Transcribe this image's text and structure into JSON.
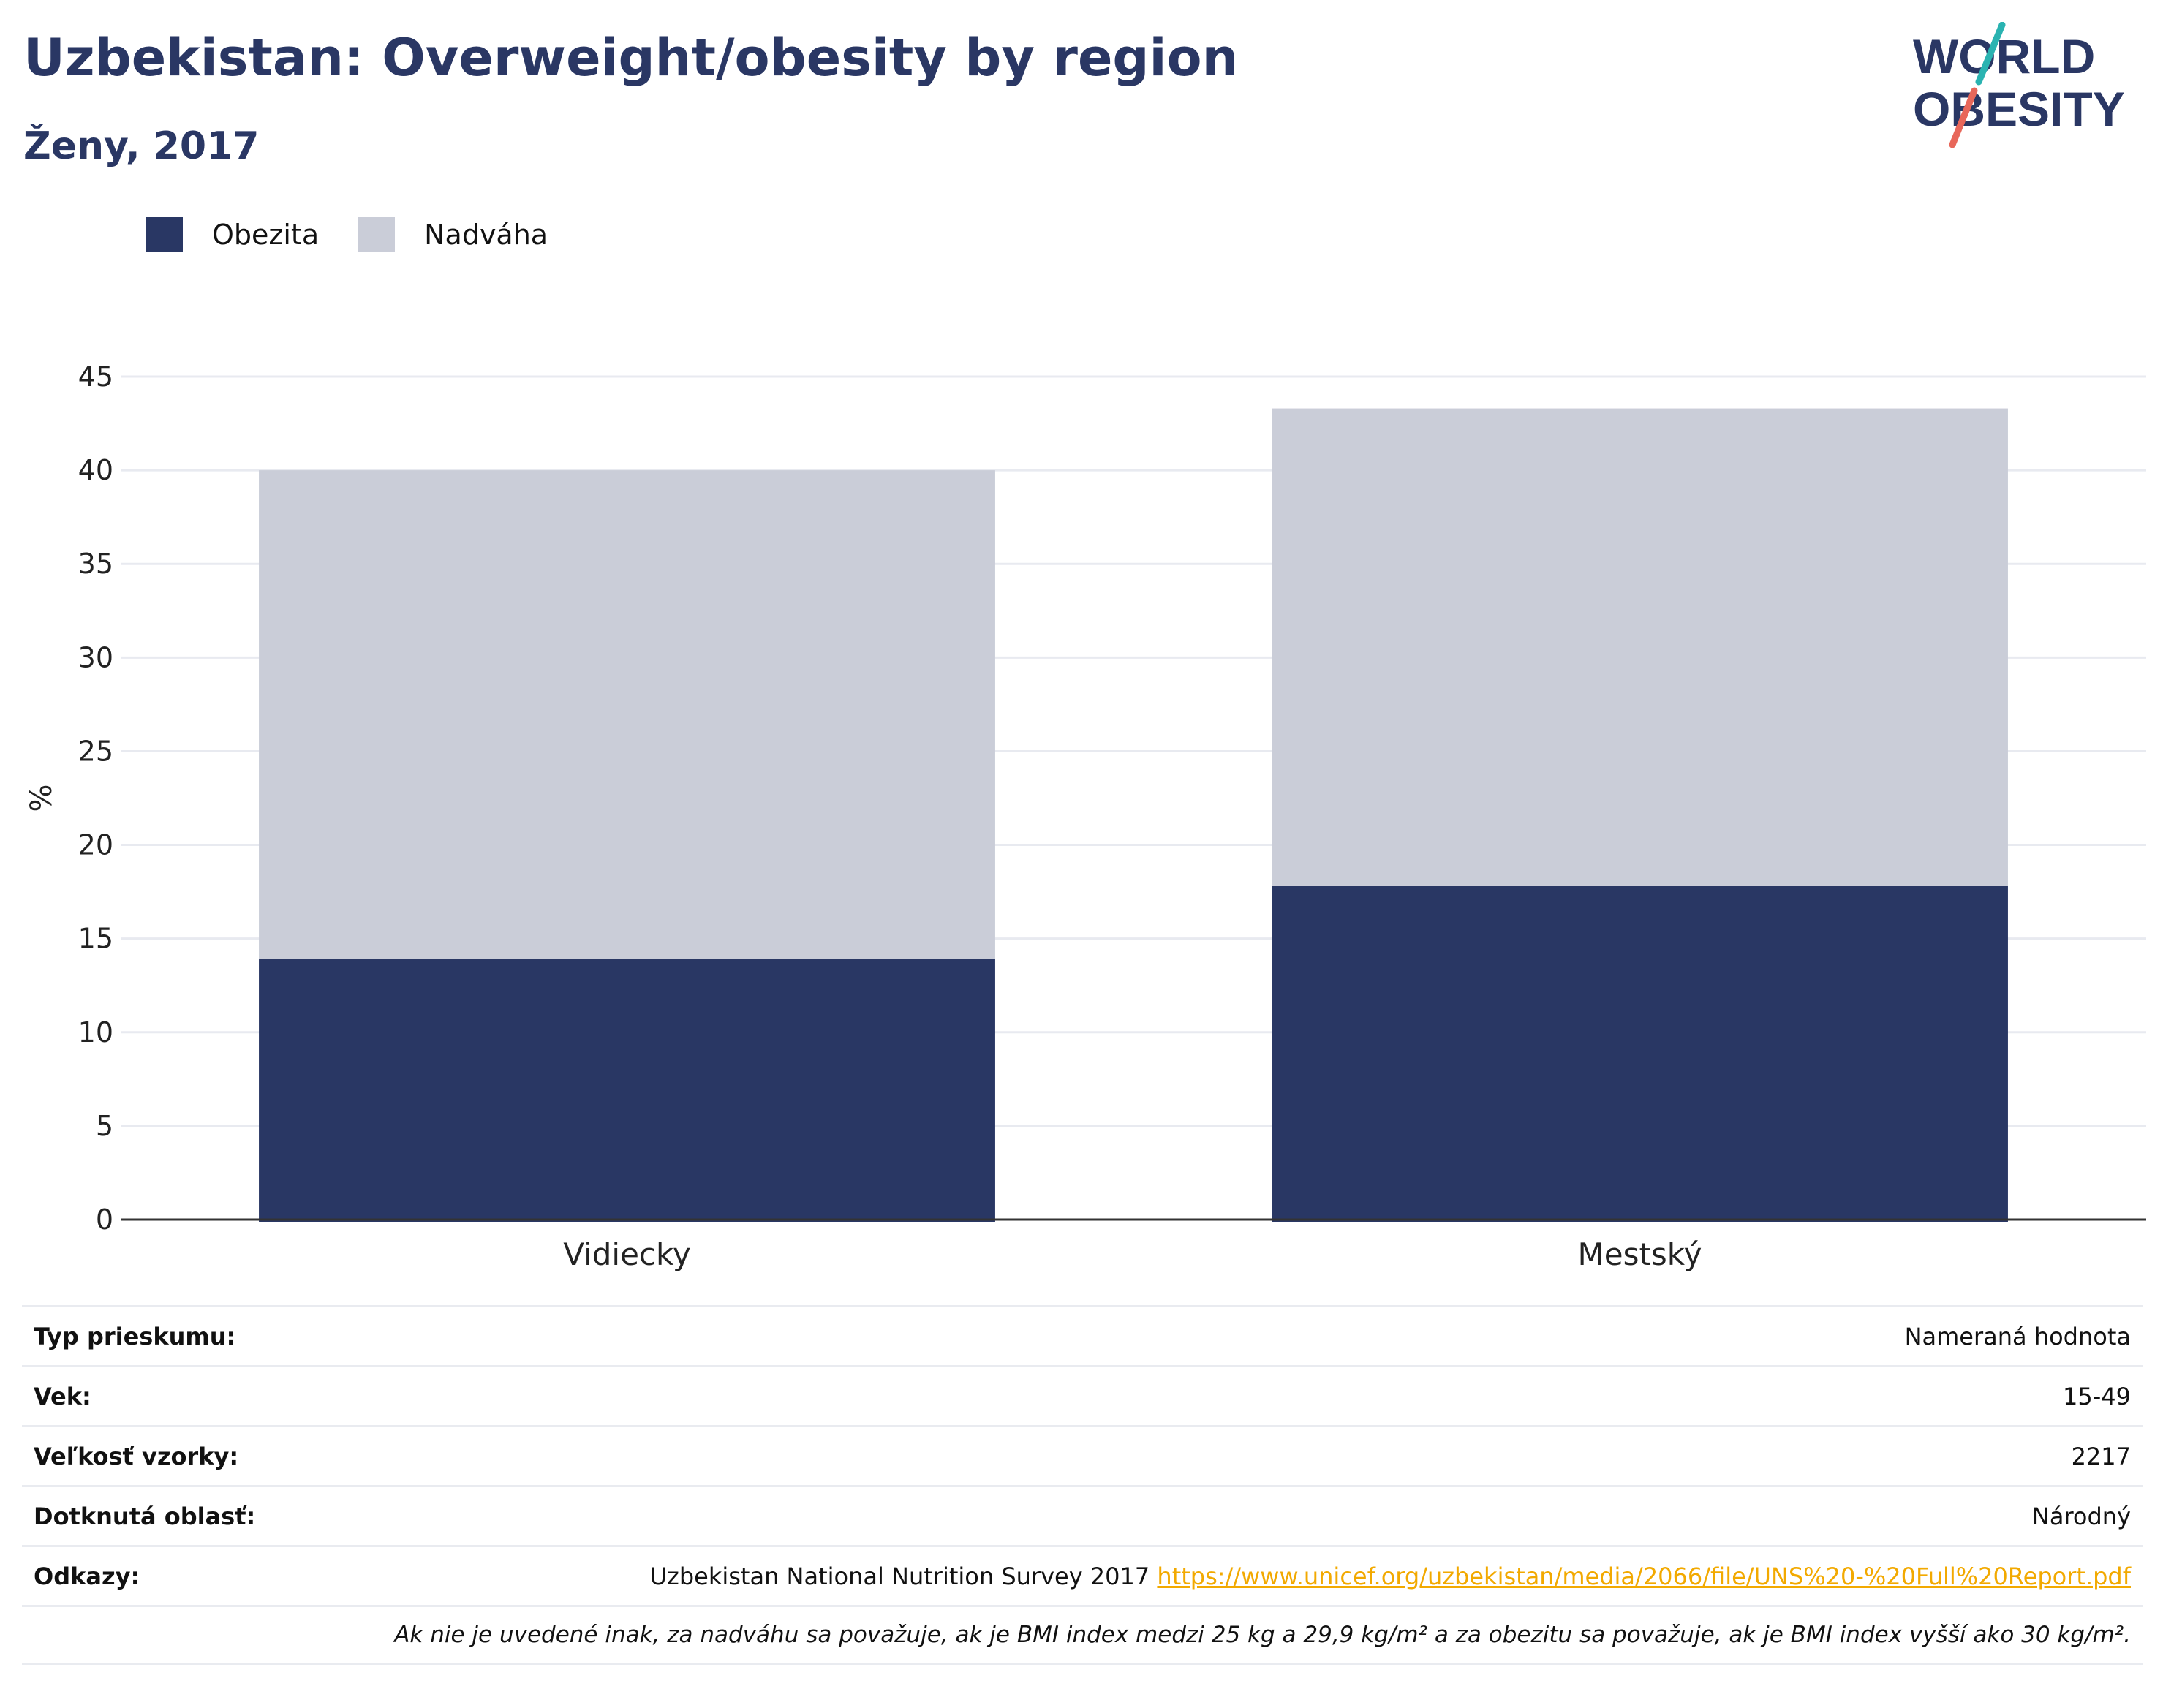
{
  "header": {
    "title": "Uzbekistan: Overweight/obesity by region",
    "subtitle": "Ženy, 2017"
  },
  "logo": {
    "line1": "WORLD",
    "line2": "OBESITY",
    "colors": {
      "text": "#2a3764",
      "slash_top": "#2ab3b1",
      "slash_bottom": "#e8675a"
    }
  },
  "colors": {
    "obesity": "#293764",
    "overweight": "#cacdd8",
    "grid": "#e8eaf0",
    "axis": "#333333",
    "link": "#f2a900"
  },
  "legend": [
    {
      "label": "Obezita",
      "color": "#293764"
    },
    {
      "label": "Nadváha",
      "color": "#cacdd8"
    }
  ],
  "chart_data": {
    "type": "bar",
    "stacked": true,
    "categories": [
      "Vidiecky",
      "Mestský"
    ],
    "series": [
      {
        "name": "Obezita",
        "values": [
          13.9,
          17.8
        ]
      },
      {
        "name": "Nadváha",
        "values": [
          26.1,
          25.5
        ]
      }
    ],
    "ylabel": "%",
    "ylim": [
      0,
      45
    ],
    "yticks": [
      0,
      5,
      10,
      15,
      20,
      25,
      30,
      35,
      40,
      45
    ],
    "grid": true,
    "legend_position": "top-left"
  },
  "info_table": [
    {
      "label": "Typ prieskumu:",
      "value": "Nameraná hodnota"
    },
    {
      "label": "Vek:",
      "value": "15-49"
    },
    {
      "label": "Veľkosť vzorky:",
      "value": "2217"
    },
    {
      "label": "Dotknutá oblasť:",
      "value": "Národný"
    }
  ],
  "references": {
    "label": "Odkazy:",
    "text": "Uzbekistan National Nutrition Survey 2017",
    "link": "https://www.unicef.org/uzbekistan/media/2066/file/UNS%20-%20Full%20Report.pdf"
  },
  "note": "Ak nie je uvedené inak, za nadváhu sa považuje, ak je BMI index medzi 25 kg a 29,9 kg/m² a za obezitu sa považuje, ak je BMI index vyšší ako 30 kg/m²."
}
